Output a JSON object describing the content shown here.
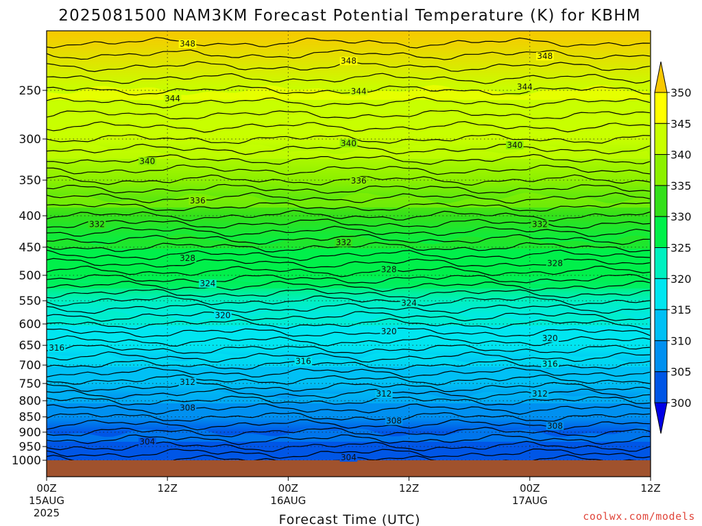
{
  "title": "2025081500 NAM3KM Forecast Potential Temperature (K) for KBHM",
  "xlabel": "Forecast Time (UTC)",
  "watermark": "coolwx.com/models",
  "colors": {
    "surface": "#a0522d",
    "contour": "#000000",
    "watermark": "#e0453a"
  },
  "chart_data": {
    "type": "heatmap",
    "title": "2025081500 NAM3KM Forecast Potential Temperature (K) for KBHM",
    "xlabel": "Forecast Time (UTC)",
    "ylabel": "",
    "y_scale": "log",
    "y_inverted": true,
    "grid": true,
    "x_ticks": [
      {
        "hours": 0,
        "label": "00Z",
        "sub1": "15AUG",
        "sub2": "2025"
      },
      {
        "hours": 12,
        "label": "12Z",
        "sub1": "",
        "sub2": ""
      },
      {
        "hours": 24,
        "label": "00Z",
        "sub1": "16AUG",
        "sub2": ""
      },
      {
        "hours": 36,
        "label": "12Z",
        "sub1": "",
        "sub2": ""
      },
      {
        "hours": 48,
        "label": "00Z",
        "sub1": "17AUG",
        "sub2": ""
      },
      {
        "hours": 60,
        "label": "12Z",
        "sub1": "",
        "sub2": ""
      }
    ],
    "x_range_hours": [
      0,
      60
    ],
    "y_ticks": [
      250,
      300,
      350,
      400,
      450,
      500,
      550,
      600,
      650,
      700,
      750,
      800,
      850,
      900,
      950,
      1000
    ],
    "y_range_hpa": [
      200,
      1000
    ],
    "colorbar": {
      "labels": [
        350,
        345,
        340,
        335,
        330,
        325,
        320,
        315,
        310,
        305,
        300
      ],
      "colors": [
        "#f8c800",
        "#ffff00",
        "#c8ff00",
        "#8cf000",
        "#33e01a",
        "#00f04a",
        "#00f0c0",
        "#00e6f0",
        "#00c0f5",
        "#0090f0",
        "#0056e6",
        "#0000e6"
      ]
    },
    "theta_profile": [
      {
        "p": 200,
        "theta": 350
      },
      {
        "p": 250,
        "theta": 345
      },
      {
        "p": 300,
        "theta": 341
      },
      {
        "p": 350,
        "theta": 337
      },
      {
        "p": 400,
        "theta": 333
      },
      {
        "p": 450,
        "theta": 329
      },
      {
        "p": 500,
        "theta": 325.5
      },
      {
        "p": 550,
        "theta": 322
      },
      {
        "p": 600,
        "theta": 319
      },
      {
        "p": 650,
        "theta": 316.5
      },
      {
        "p": 700,
        "theta": 314
      },
      {
        "p": 750,
        "theta": 311.5
      },
      {
        "p": 800,
        "theta": 309
      },
      {
        "p": 850,
        "theta": 307
      },
      {
        "p": 900,
        "theta": 305
      },
      {
        "p": 950,
        "theta": 303
      },
      {
        "p": 1000,
        "theta": 301
      }
    ],
    "contour_labels": [
      {
        "value": "348",
        "hours": 14,
        "p": 210
      },
      {
        "value": "348",
        "hours": 30,
        "p": 224
      },
      {
        "value": "348",
        "hours": 49.5,
        "p": 220
      },
      {
        "value": "344",
        "hours": 12.5,
        "p": 258
      },
      {
        "value": "344",
        "hours": 31,
        "p": 251
      },
      {
        "value": "344",
        "hours": 47.5,
        "p": 247
      },
      {
        "value": "340",
        "hours": 10,
        "p": 326
      },
      {
        "value": "340",
        "hours": 30,
        "p": 305
      },
      {
        "value": "340",
        "hours": 46.5,
        "p": 307
      },
      {
        "value": "336",
        "hours": 15,
        "p": 378
      },
      {
        "value": "336",
        "hours": 31,
        "p": 351
      },
      {
        "value": "332",
        "hours": 5,
        "p": 413
      },
      {
        "value": "332",
        "hours": 29.5,
        "p": 442
      },
      {
        "value": "332",
        "hours": 49,
        "p": 413
      },
      {
        "value": "328",
        "hours": 14,
        "p": 469
      },
      {
        "value": "328",
        "hours": 34,
        "p": 489
      },
      {
        "value": "328",
        "hours": 50.5,
        "p": 478
      },
      {
        "value": "324",
        "hours": 16,
        "p": 516
      },
      {
        "value": "324",
        "hours": 36,
        "p": 555
      },
      {
        "value": "320",
        "hours": 17.5,
        "p": 581
      },
      {
        "value": "320",
        "hours": 34,
        "p": 617
      },
      {
        "value": "320",
        "hours": 50,
        "p": 633
      },
      {
        "value": "316",
        "hours": 1,
        "p": 656
      },
      {
        "value": "316",
        "hours": 25.5,
        "p": 690
      },
      {
        "value": "316",
        "hours": 50,
        "p": 697
      },
      {
        "value": "312",
        "hours": 14,
        "p": 746
      },
      {
        "value": "312",
        "hours": 33.5,
        "p": 780
      },
      {
        "value": "312",
        "hours": 49,
        "p": 780
      },
      {
        "value": "308",
        "hours": 14,
        "p": 822
      },
      {
        "value": "308",
        "hours": 34.5,
        "p": 863
      },
      {
        "value": "308",
        "hours": 50.5,
        "p": 879
      },
      {
        "value": "304",
        "hours": 10,
        "p": 933
      },
      {
        "value": "304",
        "hours": 30,
        "p": 1010
      }
    ]
  }
}
